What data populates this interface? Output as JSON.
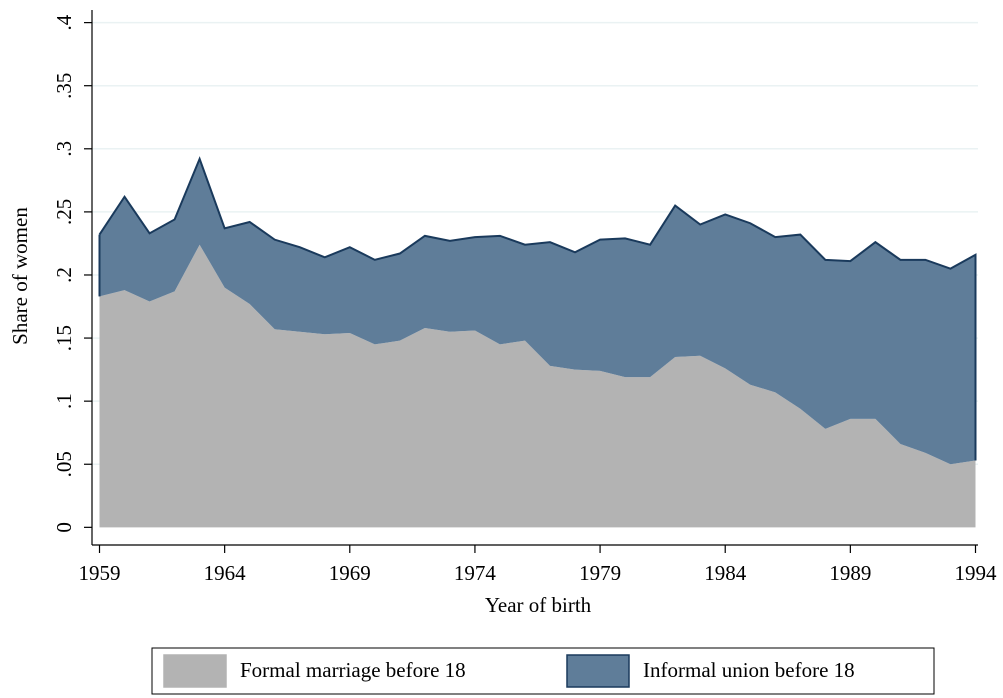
{
  "chart_data": {
    "type": "stacked-area",
    "x_label": "Year of birth",
    "y_label": "Share of women",
    "x": [
      1959,
      1960,
      1961,
      1962,
      1963,
      1964,
      1965,
      1966,
      1967,
      1968,
      1969,
      1970,
      1971,
      1972,
      1973,
      1974,
      1975,
      1976,
      1977,
      1978,
      1979,
      1980,
      1981,
      1982,
      1983,
      1984,
      1985,
      1986,
      1987,
      1988,
      1989,
      1990,
      1991,
      1992,
      1993,
      1994
    ],
    "series": [
      {
        "name": "Formal marriage before 18",
        "color": "#b3b3b3",
        "values": [
          0.183,
          0.188,
          0.179,
          0.187,
          0.224,
          0.19,
          0.177,
          0.157,
          0.155,
          0.153,
          0.154,
          0.145,
          0.148,
          0.158,
          0.155,
          0.156,
          0.145,
          0.148,
          0.128,
          0.125,
          0.124,
          0.119,
          0.119,
          0.135,
          0.136,
          0.126,
          0.113,
          0.107,
          0.094,
          0.078,
          0.086,
          0.086,
          0.066,
          0.059,
          0.05,
          0.053
        ]
      },
      {
        "name": "Informal union before 18",
        "color": "#5f7d99",
        "values": [
          0.049,
          0.074,
          0.054,
          0.057,
          0.068,
          0.047,
          0.065,
          0.071,
          0.067,
          0.061,
          0.068,
          0.067,
          0.069,
          0.073,
          0.072,
          0.074,
          0.086,
          0.076,
          0.098,
          0.093,
          0.104,
          0.11,
          0.105,
          0.12,
          0.104,
          0.122,
          0.128,
          0.123,
          0.138,
          0.134,
          0.125,
          0.14,
          0.146,
          0.153,
          0.155,
          0.163
        ]
      }
    ],
    "outline_color": "#1a3a5c",
    "xlim": [
      1958.7,
      1994.1
    ],
    "xticks": [
      1959,
      1964,
      1969,
      1974,
      1979,
      1984,
      1989,
      1994
    ],
    "ylim": [
      -0.014,
      0.41
    ],
    "yticks": [
      0,
      {
        "value": 0.05,
        "label": ".05"
      },
      {
        "value": 0.1,
        "label": ".1"
      },
      {
        "value": 0.15,
        "label": ".15"
      },
      {
        "value": 0.2,
        "label": ".2"
      },
      {
        "value": 0.25,
        "label": ".25"
      },
      {
        "value": 0.3,
        "label": ".3"
      },
      {
        "value": 0.35,
        "label": ".35"
      },
      {
        "value": 0.4,
        "label": ".4"
      }
    ],
    "grid": true,
    "legend": "bottom"
  }
}
